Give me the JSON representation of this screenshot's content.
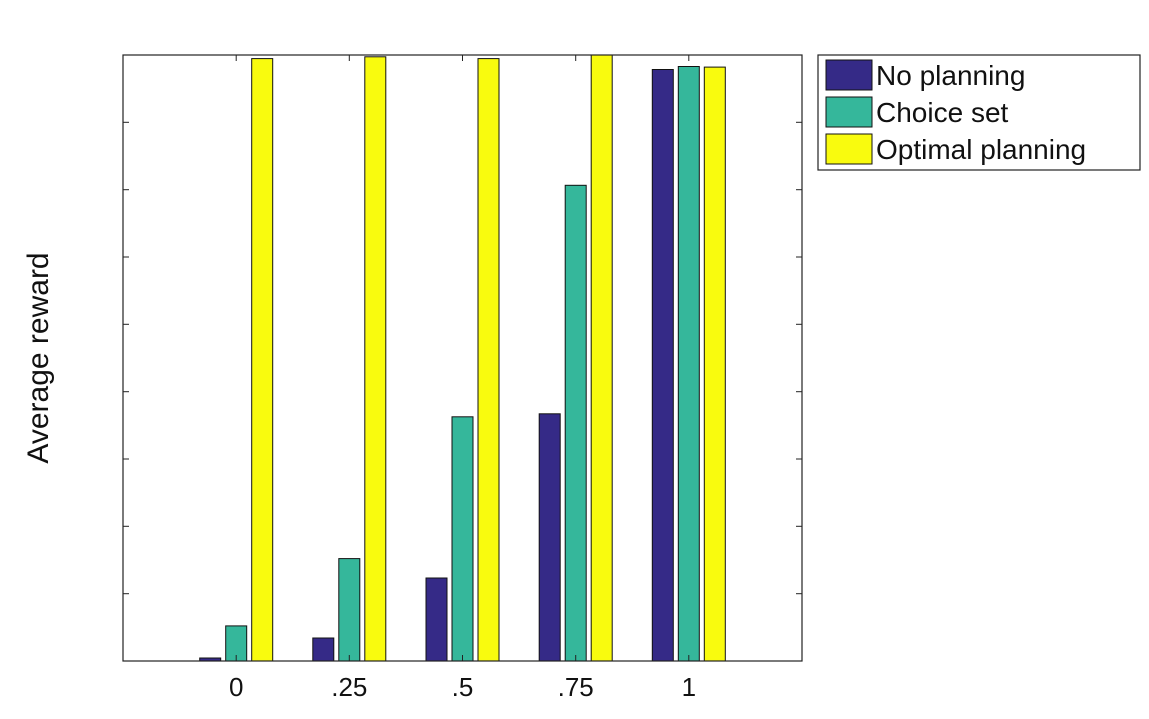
{
  "chart_data": {
    "type": "bar",
    "title": "",
    "xlabel": "",
    "ylabel": "Average reward",
    "categories": [
      "0",
      ".25",
      ".5",
      ".75",
      "1"
    ],
    "series": [
      {
        "name": "No planning",
        "color": "#352a87",
        "values": [
          0.5,
          3.8,
          13.7,
          40.8,
          97.6
        ]
      },
      {
        "name": "Choice set",
        "color": "#35b79b",
        "values": [
          5.8,
          16.9,
          40.3,
          78.5,
          98.1
        ]
      },
      {
        "name": "Optimal planning",
        "color": "#f9fb0e",
        "values": [
          99.4,
          99.7,
          99.4,
          100.0,
          98.0
        ]
      }
    ],
    "ylim": [
      0,
      100
    ],
    "ytick_count": 9,
    "y_tick_labels_shown": false,
    "grid": false,
    "legend_position": "outside-top-right"
  }
}
